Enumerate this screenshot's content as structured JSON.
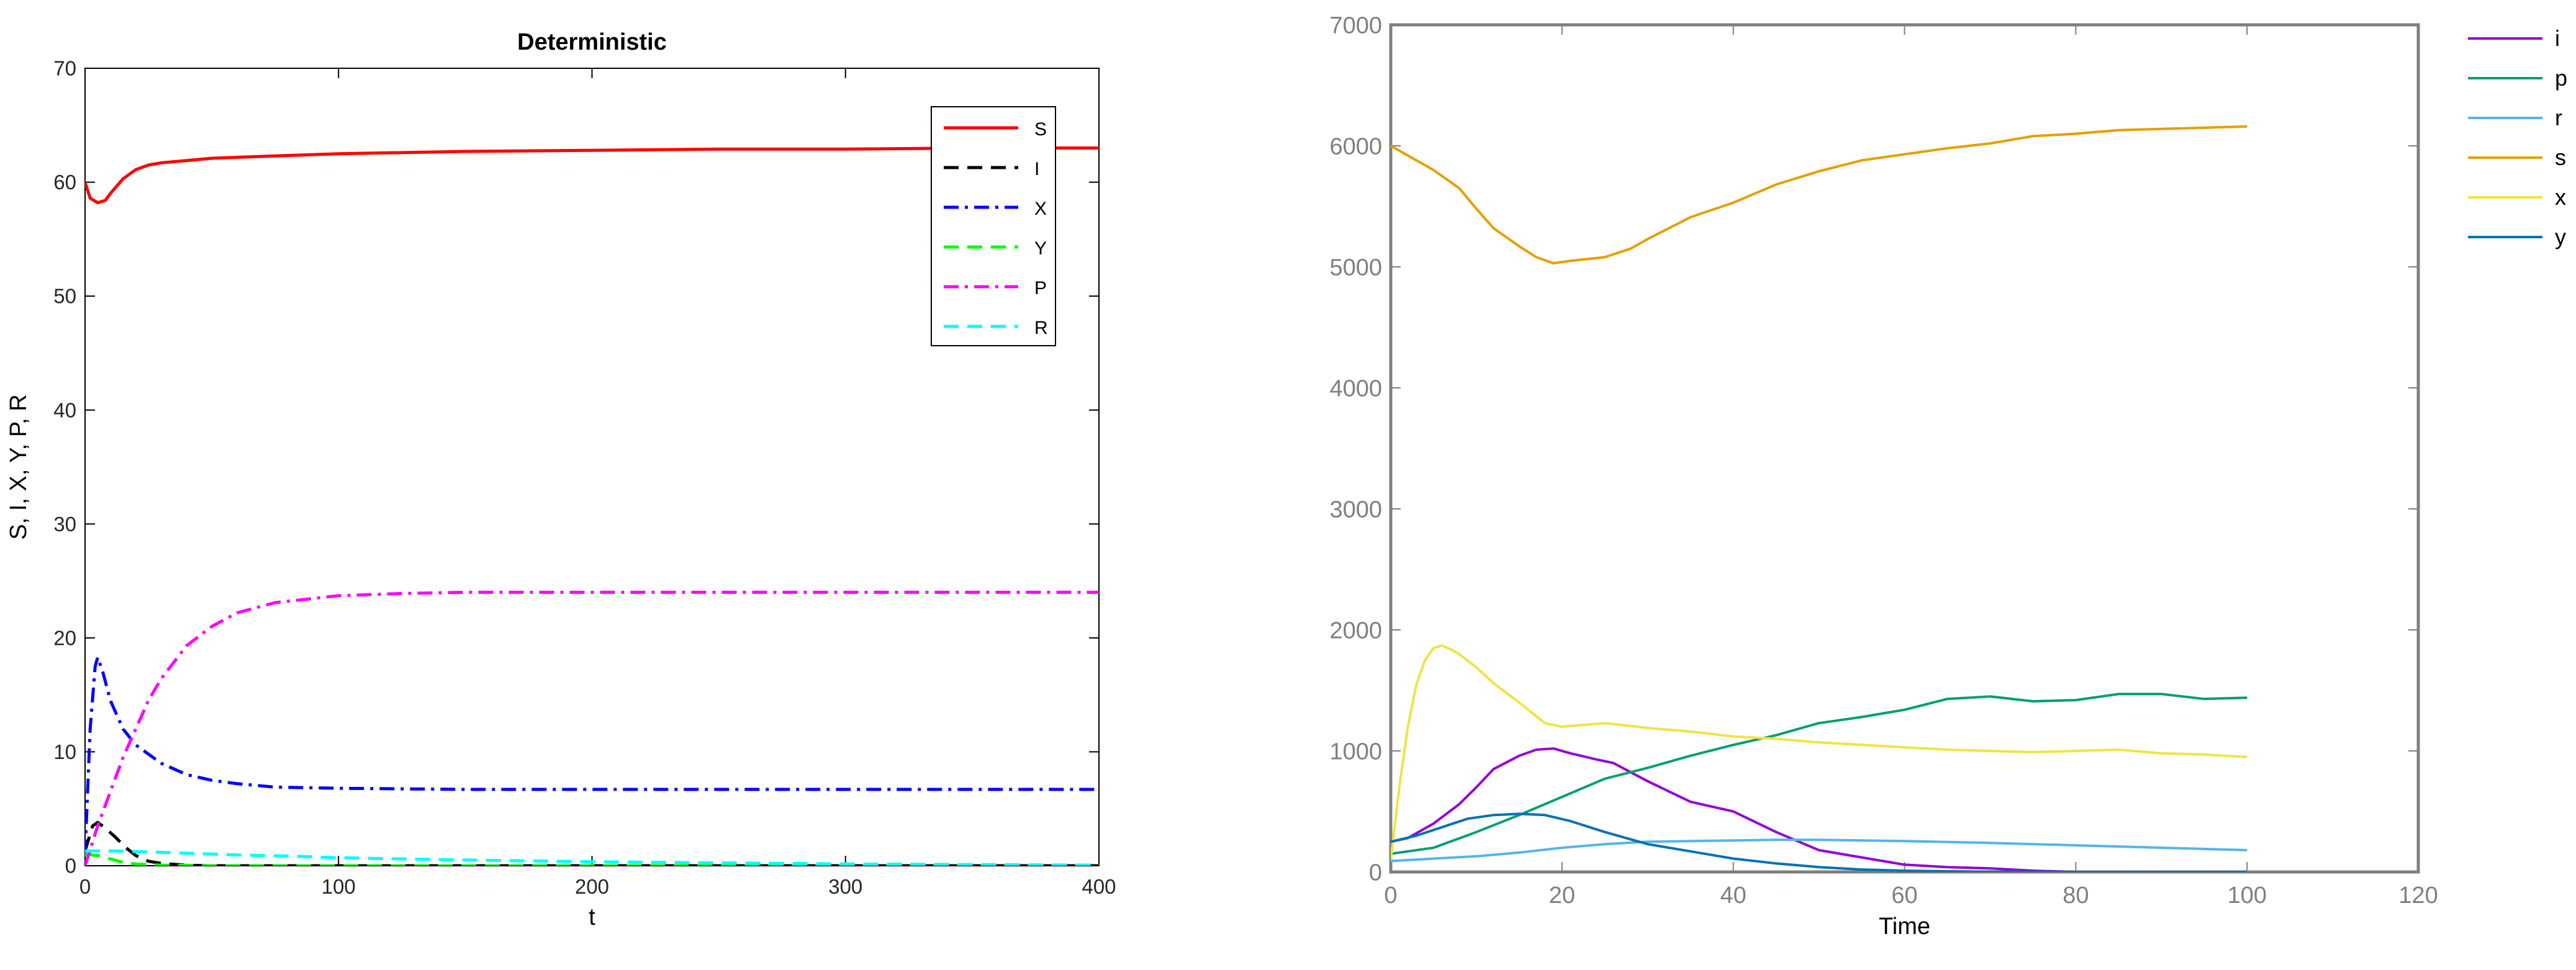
{
  "chart_data": [
    {
      "type": "line",
      "title": "Deterministic",
      "xlabel": "t",
      "ylabel": "S, I, X, Y, P, R",
      "xlim": [
        0,
        400
      ],
      "ylim": [
        0,
        70
      ],
      "xticks": [
        0,
        100,
        200,
        300,
        400
      ],
      "yticks": [
        0,
        10,
        20,
        30,
        40,
        50,
        60,
        70
      ],
      "grid": false,
      "legend_position": "top-right",
      "series": [
        {
          "name": "S",
          "color": "#ff0000",
          "dash": "solid",
          "x": [
            0,
            2,
            5,
            8,
            10,
            15,
            20,
            25,
            30,
            40,
            50,
            75,
            100,
            150,
            200,
            250,
            300,
            350,
            400
          ],
          "y": [
            60,
            58.6,
            58.2,
            58.4,
            59.0,
            60.3,
            61.1,
            61.5,
            61.7,
            61.9,
            62.1,
            62.3,
            62.5,
            62.7,
            62.8,
            62.9,
            62.9,
            63.0,
            63.0
          ]
        },
        {
          "name": "I",
          "color": "#000000",
          "dash": "dash",
          "x": [
            0,
            3,
            5,
            8,
            12,
            16,
            20,
            25,
            30,
            40,
            50,
            100,
            200,
            300,
            400
          ],
          "y": [
            1.3,
            3.5,
            3.8,
            3.3,
            2.5,
            1.6,
            0.9,
            0.4,
            0.2,
            0.05,
            0,
            0,
            0,
            0,
            0
          ]
        },
        {
          "name": "X",
          "color": "#0000ff",
          "dash": "dashdot",
          "x": [
            0,
            2,
            4,
            5,
            7,
            10,
            15,
            20,
            30,
            40,
            50,
            60,
            75,
            100,
            150,
            200,
            300,
            400
          ],
          "y": [
            1,
            12,
            17.5,
            18.3,
            17.0,
            14.5,
            12.0,
            10.6,
            9.0,
            8.0,
            7.5,
            7.2,
            6.9,
            6.8,
            6.7,
            6.7,
            6.7,
            6.7
          ]
        },
        {
          "name": "Y",
          "color": "#00ff00",
          "dash": "dash",
          "x": [
            0,
            5,
            10,
            15,
            20,
            30,
            50,
            100,
            200,
            300,
            400
          ],
          "y": [
            1.0,
            0.9,
            0.6,
            0.3,
            0.15,
            0.05,
            0,
            0,
            0,
            0,
            0
          ]
        },
        {
          "name": "P",
          "color": "#ff00ff",
          "dash": "dashdot",
          "x": [
            0,
            5,
            10,
            15,
            20,
            25,
            30,
            40,
            50,
            60,
            75,
            100,
            125,
            150,
            200,
            250,
            300,
            350,
            400
          ],
          "y": [
            0,
            3.5,
            6.5,
            9.5,
            12.0,
            14.5,
            16.4,
            19.3,
            21.0,
            22.2,
            23.1,
            23.7,
            23.9,
            24.0,
            24.0,
            24.0,
            24.0,
            24.0,
            24.0
          ]
        },
        {
          "name": "R",
          "color": "#00ffff",
          "dash": "dash",
          "x": [
            0,
            10,
            20,
            40,
            60,
            80,
            100,
            150,
            200,
            250,
            300,
            350,
            400
          ],
          "y": [
            1.3,
            1.3,
            1.25,
            1.1,
            0.95,
            0.85,
            0.7,
            0.5,
            0.35,
            0.25,
            0.15,
            0.1,
            0.05
          ]
        }
      ]
    },
    {
      "type": "line",
      "title": "",
      "xlabel": "Time",
      "ylabel": "",
      "xlim": [
        0,
        120
      ],
      "ylim": [
        0,
        7000
      ],
      "xticks": [
        0,
        20,
        40,
        60,
        80,
        100,
        120
      ],
      "yticks": [
        0,
        1000,
        2000,
        3000,
        4000,
        5000,
        6000,
        7000
      ],
      "grid": false,
      "legend_position": "outside-right",
      "series": [
        {
          "name": "i",
          "color": "#9400d3",
          "x": [
            0,
            2,
            5,
            8,
            10,
            12,
            15,
            17,
            19,
            21,
            24,
            26,
            30,
            35,
            40,
            45,
            50,
            55,
            60,
            65,
            70,
            75,
            80
          ],
          "y": [
            250,
            280,
            400,
            560,
            700,
            850,
            960,
            1010,
            1020,
            980,
            930,
            900,
            750,
            580,
            500,
            330,
            180,
            120,
            60,
            40,
            30,
            10,
            0
          ]
        },
        {
          "name": "p",
          "color": "#009e73",
          "x": [
            0,
            5,
            10,
            15,
            20,
            25,
            30,
            35,
            40,
            45,
            50,
            55,
            60,
            65,
            70,
            75,
            80,
            85,
            90,
            95,
            100
          ],
          "y": [
            150,
            200,
            330,
            470,
            620,
            770,
            860,
            960,
            1050,
            1130,
            1230,
            1280,
            1340,
            1430,
            1450,
            1410,
            1420,
            1470,
            1470,
            1430,
            1440
          ]
        },
        {
          "name": "r",
          "color": "#56b4e9",
          "x": [
            0,
            5,
            10,
            15,
            20,
            25,
            30,
            35,
            40,
            45,
            50,
            60,
            70,
            80,
            90,
            100
          ],
          "y": [
            90,
            110,
            130,
            160,
            200,
            230,
            250,
            255,
            260,
            265,
            265,
            255,
            240,
            220,
            200,
            180
          ]
        },
        {
          "name": "s",
          "color": "#e69f00",
          "x": [
            0,
            2,
            5,
            8,
            10,
            12,
            15,
            17,
            19,
            21,
            25,
            28,
            30,
            35,
            40,
            45,
            50,
            55,
            60,
            65,
            70,
            75,
            80,
            85,
            90,
            95,
            100
          ],
          "y": [
            6000,
            5920,
            5800,
            5650,
            5480,
            5320,
            5170,
            5080,
            5030,
            5050,
            5080,
            5150,
            5230,
            5410,
            5530,
            5680,
            5790,
            5880,
            5930,
            5980,
            6020,
            6080,
            6100,
            6130,
            6140,
            6150,
            6160
          ]
        },
        {
          "name": "x",
          "color": "#f0e442",
          "x": [
            0,
            1,
            2,
            3,
            4,
            5,
            6,
            7,
            8,
            10,
            12,
            15,
            18,
            20,
            25,
            30,
            35,
            40,
            45,
            50,
            55,
            60,
            65,
            70,
            75,
            80,
            85,
            90,
            95,
            100
          ],
          "y": [
            100,
            700,
            1200,
            1550,
            1750,
            1850,
            1870,
            1840,
            1800,
            1690,
            1560,
            1400,
            1230,
            1200,
            1230,
            1190,
            1160,
            1120,
            1100,
            1070,
            1050,
            1030,
            1010,
            1000,
            990,
            1000,
            1010,
            980,
            970,
            950
          ]
        },
        {
          "name": "y",
          "color": "#0072b2",
          "x": [
            0,
            3,
            6,
            9,
            12,
            15,
            18,
            21,
            25,
            30,
            35,
            40,
            45,
            50,
            55,
            60,
            65,
            70,
            80,
            90,
            100
          ],
          "y": [
            250,
            300,
            370,
            440,
            470,
            480,
            470,
            420,
            330,
            230,
            170,
            110,
            70,
            40,
            20,
            10,
            5,
            2,
            0,
            0,
            0
          ]
        }
      ]
    }
  ]
}
